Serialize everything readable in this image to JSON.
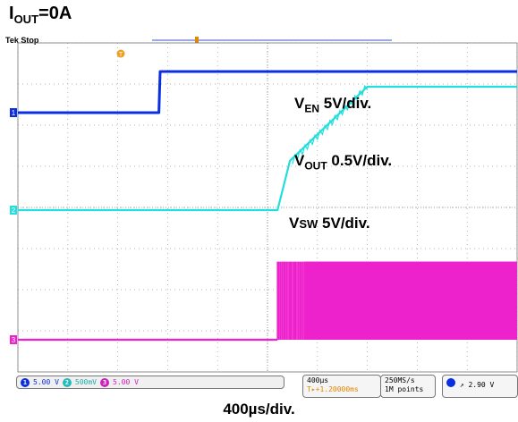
{
  "title": {
    "main": "I",
    "sub": "OUT",
    "rest": "=0A"
  },
  "scope_status": "Tek Stop",
  "trigger_marker": "T",
  "channel_labels": {
    "en": {
      "v": "V",
      "sub": "EN",
      "rest": "  5V/div."
    },
    "out": {
      "v": "V",
      "sub": "OUT",
      "rest": " 0.5V/div."
    },
    "sw": {
      "v": "V",
      "sub": "SW",
      "rest": " 5V/div."
    }
  },
  "channel_markers": [
    "1",
    "2",
    "3"
  ],
  "status": {
    "ch1_scale": "5.00 V",
    "ch2_scale": "500mV",
    "ch3_scale": "5.00 V",
    "timebase": "400µs",
    "trigger_pos": "T▸+1.20000ms",
    "sample_rate": "250MS/s",
    "record_length": "1M points",
    "trigger_level": "2.90 V"
  },
  "xaxis_label": "400µs/div.",
  "colors": {
    "ch1": "#0a2ee0",
    "ch2": "#22dede",
    "ch3": "#ee22cc",
    "grid": "#9a9a9a"
  },
  "chart_data": {
    "type": "line",
    "title": "IOUT=0A",
    "xlabel": "400µs/div.",
    "x_unit": "ms",
    "xlim": [
      0,
      4.0
    ],
    "series": [
      {
        "name": "VEN 5V/div.",
        "unit": "V",
        "x": [
          0,
          1.13,
          1.14,
          4.0
        ],
        "values": [
          0,
          0,
          5,
          5
        ]
      },
      {
        "name": "VOUT 0.5V/div.",
        "unit": "V",
        "x": [
          0,
          2.08,
          2.18,
          2.8,
          4.0
        ],
        "values": [
          0,
          0,
          0.6,
          1.5,
          1.5
        ]
      },
      {
        "name": "VSW 5V/div.",
        "unit": "V",
        "x": [
          0,
          2.08,
          4.0
        ],
        "values": [
          0,
          0,
          9.5
        ],
        "note": "switching burst starts at ~2.08 ms"
      }
    ]
  }
}
